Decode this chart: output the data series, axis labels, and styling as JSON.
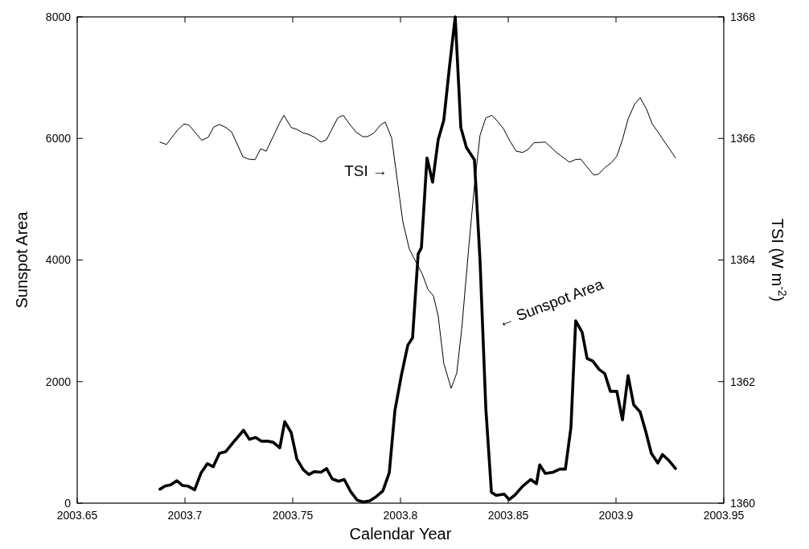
{
  "chart_data": {
    "type": "line",
    "xlabel": "Calendar Year",
    "ylabel": "Sunspot Area",
    "y2label": "TSI (W m$^{-2}$)",
    "xlim": [
      2003.65,
      2003.95
    ],
    "xticks": [
      2003.65,
      2003.7,
      2003.75,
      2003.8,
      2003.85,
      2003.9,
      2003.95
    ],
    "ylim": [
      0,
      8000
    ],
    "yticks": [
      0,
      2000,
      4000,
      6000,
      8000
    ],
    "y2lim": [
      1360,
      1368
    ],
    "y2ticks": [
      1360,
      1362,
      1364,
      1366,
      1368
    ],
    "grid": false,
    "line_style": "solid",
    "marker": "none",
    "series": [
      {
        "color": "#000000",
        "x": [
          2003.6884,
          2003.6907,
          2003.6933,
          2003.6963,
          2003.6989,
          2003.7015,
          2003.7045,
          2003.7075,
          2003.7104,
          2003.7131,
          2003.716,
          2003.719,
          2003.7224,
          2003.7272,
          2003.7299,
          2003.7328,
          2003.7354,
          2003.7384,
          2003.741,
          2003.744,
          2003.7463,
          2003.7493,
          2003.7519,
          2003.7549,
          2003.7575,
          2003.7601,
          2003.7631,
          2003.7657,
          2003.7683,
          2003.7713,
          2003.7739,
          2003.7769,
          2003.7799,
          2003.7828,
          2003.7858,
          2003.7888,
          2003.7918,
          2003.7948,
          2003.7974,
          2003.8004,
          2003.8034,
          2003.8056,
          2003.8082,
          2003.8097,
          2003.8123,
          2003.8149,
          2003.8175,
          2003.8201,
          2003.8228,
          2003.8254,
          2003.828,
          2003.8306,
          2003.8343,
          2003.8369,
          2003.8396,
          2003.8422,
          2003.8444,
          2003.8481,
          2003.8504,
          2003.853,
          2003.8567,
          2003.8604,
          2003.8631,
          2003.8646,
          2003.8672,
          2003.8709,
          2003.8739,
          2003.8765,
          2003.8791,
          2003.8813,
          2003.8843,
          2003.8866,
          2003.8892,
          2003.8922,
          2003.8948,
          2003.8974,
          2003.9004,
          2003.903,
          2003.9056,
          2003.9082,
          2003.9112,
          2003.9138,
          2003.9164,
          2003.9194,
          2003.9216,
          2003.9246,
          2003.9276
        ],
        "values": [
          230,
          280,
          300,
          370,
          290,
          280,
          220,
          500,
          650,
          600,
          820,
          850,
          1000,
          1200,
          1050,
          1080,
          1020,
          1020,
          1000,
          910,
          1340,
          1160,
          730,
          550,
          470,
          520,
          510,
          570,
          400,
          360,
          390,
          190,
          50,
          20,
          40,
          110,
          200,
          500,
          1520,
          2100,
          2600,
          2720,
          4100,
          4200,
          5680,
          5280,
          5980,
          6300,
          7200,
          8000,
          6180,
          5850,
          5650,
          4000,
          1560,
          180,
          130,
          150,
          60,
          130,
          280,
          390,
          320,
          630,
          490,
          510,
          560,
          560,
          1250,
          3000,
          2810,
          2380,
          2340,
          2200,
          2130,
          1840,
          1840,
          1370,
          2100,
          1620,
          1500,
          1180,
          820,
          660,
          800,
          700,
          570
        ]
      },
      {
        "color": "#000000",
        "axis": "y2",
        "x": [
          2003.6884,
          2003.6914,
          2003.6966,
          2003.6996,
          2003.7019,
          2003.7078,
          2003.7108,
          2003.7134,
          2003.716,
          2003.719,
          2003.7216,
          2003.7269,
          2003.7295,
          2003.7325,
          2003.7351,
          2003.7377,
          2003.7437,
          2003.7459,
          2003.7493,
          2003.7519,
          2003.7549,
          2003.7571,
          2003.7601,
          2003.7631,
          2003.7657,
          2003.7709,
          2003.7735,
          2003.7765,
          2003.7795,
          2003.7825,
          2003.7847,
          2003.7877,
          2003.7907,
          2003.7929,
          2003.7959,
          2003.7985,
          2003.8011,
          2003.8041,
          2003.8067,
          2003.8101,
          2003.8127,
          2003.8153,
          2003.8175,
          2003.8201,
          2003.8235,
          2003.8261,
          2003.8284,
          2003.8317,
          2003.8343,
          2003.8369,
          2003.8396,
          2003.8425,
          2003.8451,
          2003.8478,
          2003.8504,
          2003.8537,
          2003.8567,
          2003.8593,
          2003.8619,
          2003.8672,
          2003.8724,
          2003.8784,
          2003.881,
          2003.8836,
          2003.8896,
          2003.8918,
          2003.8948,
          2003.8978,
          2003.9004,
          2003.903,
          2003.9056,
          2003.9086,
          2003.9112,
          2003.9142,
          2003.9168,
          2003.9198,
          2003.9224,
          2003.925,
          2003.9276
        ],
        "values": [
          1365.94,
          1365.9,
          1366.14,
          1366.24,
          1366.22,
          1365.97,
          1366.02,
          1366.19,
          1366.23,
          1366.18,
          1366.11,
          1365.7,
          1365.66,
          1365.65,
          1365.83,
          1365.79,
          1366.24,
          1366.38,
          1366.18,
          1366.15,
          1366.09,
          1366.07,
          1366.02,
          1365.94,
          1365.98,
          1366.34,
          1366.38,
          1366.23,
          1366.1,
          1366.03,
          1366.03,
          1366.09,
          1366.22,
          1366.27,
          1366.01,
          1365.32,
          1364.63,
          1364.18,
          1364.0,
          1363.77,
          1363.52,
          1363.41,
          1363.08,
          1362.3,
          1361.89,
          1362.14,
          1362.86,
          1364.22,
          1365.22,
          1366.05,
          1366.34,
          1366.38,
          1366.28,
          1366.16,
          1365.98,
          1365.79,
          1365.77,
          1365.82,
          1365.93,
          1365.94,
          1365.77,
          1365.61,
          1365.65,
          1365.66,
          1365.4,
          1365.41,
          1365.52,
          1365.6,
          1365.71,
          1365.98,
          1366.32,
          1366.56,
          1366.67,
          1366.48,
          1366.24,
          1366.09,
          1365.95,
          1365.82,
          1365.68
        ]
      }
    ],
    "annotations": [
      "TSI →",
      "← Sunspot Area"
    ]
  }
}
